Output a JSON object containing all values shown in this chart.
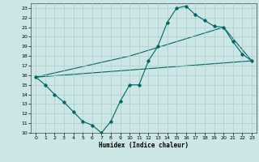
{
  "xlabel": "Humidex (Indice chaleur)",
  "bg_color": "#cce6e6",
  "grid_color": "#aacccc",
  "line_color": "#006666",
  "xlim": [
    -0.5,
    23.5
  ],
  "ylim": [
    10,
    23.5
  ],
  "xticks": [
    0,
    1,
    2,
    3,
    4,
    5,
    6,
    7,
    8,
    9,
    10,
    11,
    12,
    13,
    14,
    15,
    16,
    17,
    18,
    19,
    20,
    21,
    22,
    23
  ],
  "yticks": [
    10,
    11,
    12,
    13,
    14,
    15,
    16,
    17,
    18,
    19,
    20,
    21,
    22,
    23
  ],
  "line1_x": [
    0,
    1,
    2,
    3,
    4,
    5,
    6,
    7,
    8,
    9,
    10,
    11,
    12,
    13,
    14,
    15,
    16,
    17,
    18,
    19,
    20,
    21,
    22,
    23
  ],
  "line1_y": [
    15.8,
    15.0,
    14.0,
    13.2,
    12.2,
    11.2,
    10.8,
    10.0,
    11.2,
    13.3,
    15.0,
    15.0,
    17.5,
    19.0,
    21.5,
    23.0,
    23.2,
    22.3,
    21.7,
    21.1,
    21.0,
    19.5,
    18.2,
    17.5
  ],
  "line2_x": [
    0,
    23
  ],
  "line2_y": [
    15.8,
    17.5
  ],
  "line3_x": [
    0,
    10,
    20,
    23
  ],
  "line3_y": [
    15.8,
    18.0,
    21.0,
    17.5
  ]
}
